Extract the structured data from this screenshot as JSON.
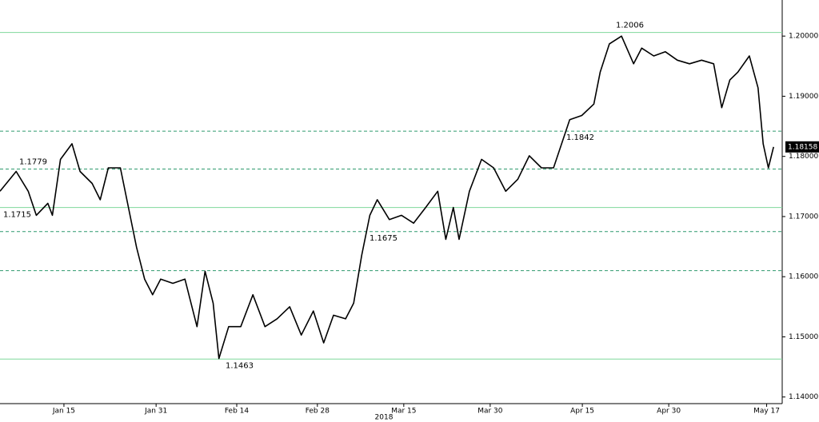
{
  "chart_data": {
    "type": "line",
    "x": [
      3.9,
      6.7,
      8.8,
      10.2,
      12.2,
      13,
      14.4,
      16.4,
      17.8,
      19.9,
      21.3,
      22.7,
      24.8,
      26.2,
      27.6,
      29,
      30.4,
      31.8,
      33.9,
      36,
      38.1,
      39.5,
      40.9,
      41.9,
      43.6,
      45.7,
      47.8,
      49.9,
      52,
      54.2,
      56.2,
      58.3,
      60.1,
      61.8,
      63.9,
      65.3,
      66.7,
      68.1,
      69.4,
      71.5,
      73.6,
      75.7,
      77.8,
      79.9,
      81.3,
      82.6,
      83.6,
      85.4,
      87.5,
      89.6,
      91.7,
      93.8,
      95.8,
      97.9,
      100,
      101.4,
      102.8,
      104.9,
      107,
      108.1,
      109.7,
      111.8,
      113.9,
      115.3,
      117.4,
      119.4,
      121.5,
      123.6,
      125.7,
      127.8,
      129.2,
      130.6,
      132,
      134,
      135.5,
      136.4,
      137.3,
      138.2
    ],
    "series": [
      {
        "color": "#000000",
        "values": [
          1.1742,
          1.1775,
          1.1742,
          1.1702,
          1.1722,
          1.1702,
          1.1795,
          1.1821,
          1.1775,
          1.1755,
          1.1728,
          1.1781,
          1.1781,
          1.1715,
          1.1649,
          1.1596,
          1.157,
          1.1596,
          1.1589,
          1.1596,
          1.1517,
          1.1609,
          1.1556,
          1.1464,
          1.1517,
          1.1517,
          1.157,
          1.1517,
          1.153,
          1.155,
          1.1503,
          1.1543,
          1.149,
          1.1536,
          1.153,
          1.1556,
          1.1636,
          1.1702,
          1.1728,
          1.1695,
          1.1702,
          1.1689,
          1.1715,
          1.1742,
          1.1662,
          1.1715,
          1.1662,
          1.1742,
          1.1795,
          1.1781,
          1.1742,
          1.1762,
          1.1801,
          1.1781,
          1.1781,
          1.1821,
          1.1861,
          1.1868,
          1.1887,
          1.194,
          1.1987,
          1.2,
          1.1954,
          1.198,
          1.1967,
          1.1974,
          1.196,
          1.1954,
          1.196,
          1.1954,
          1.1881,
          1.1927,
          1.194,
          1.1967,
          1.1914,
          1.1821,
          1.1781,
          1.18158
        ]
      }
    ],
    "last_price": {
      "value": 1.18158,
      "label": "1.18158"
    },
    "levels": [
      {
        "value": 1.2006,
        "label": "1.2006",
        "style": "solid"
      },
      {
        "value": 1.1842,
        "label": "1.1842",
        "style": "dashed"
      },
      {
        "value": 1.1779,
        "label": "1.1779",
        "style": "dashed"
      },
      {
        "value": 1.1715,
        "label": "1.1715",
        "style": "solid"
      },
      {
        "value": 1.1675,
        "label": "1.1675",
        "style": "dashed"
      },
      {
        "value": 1.161,
        "label": null,
        "style": "dashed"
      },
      {
        "value": 1.1463,
        "label": "1.1463",
        "style": "solid"
      }
    ],
    "solid_color": "#7fd89c",
    "dashed_color": "#2e9a6e",
    "xlim": [
      3.9,
      139.7
    ],
    "xticks": [
      {
        "value": 15,
        "label": "Jan 15"
      },
      {
        "value": 31,
        "label": "Jan 31"
      },
      {
        "value": 45,
        "label": "Feb 14"
      },
      {
        "value": 59,
        "label": "Feb 28"
      },
      {
        "value": 74,
        "label": "Mar 15"
      },
      {
        "value": 89,
        "label": "Mar 30"
      },
      {
        "value": 105,
        "label": "Apr 15"
      },
      {
        "value": 120,
        "label": "Apr 30"
      },
      {
        "value": 137,
        "label": "May 17"
      }
    ],
    "x_label": "2018",
    "ylim": [
      1.1389,
      1.206
    ],
    "yticks": [
      {
        "value": 1.14,
        "label": "1.14000"
      },
      {
        "value": 1.15,
        "label": "1.15000"
      },
      {
        "value": 1.16,
        "label": "1.16000"
      },
      {
        "value": 1.17,
        "label": "1.17000"
      },
      {
        "value": 1.18,
        "label": "1.18000"
      },
      {
        "value": 1.19,
        "label": "1.19000"
      },
      {
        "value": 1.2,
        "label": "1.20000"
      }
    ]
  }
}
